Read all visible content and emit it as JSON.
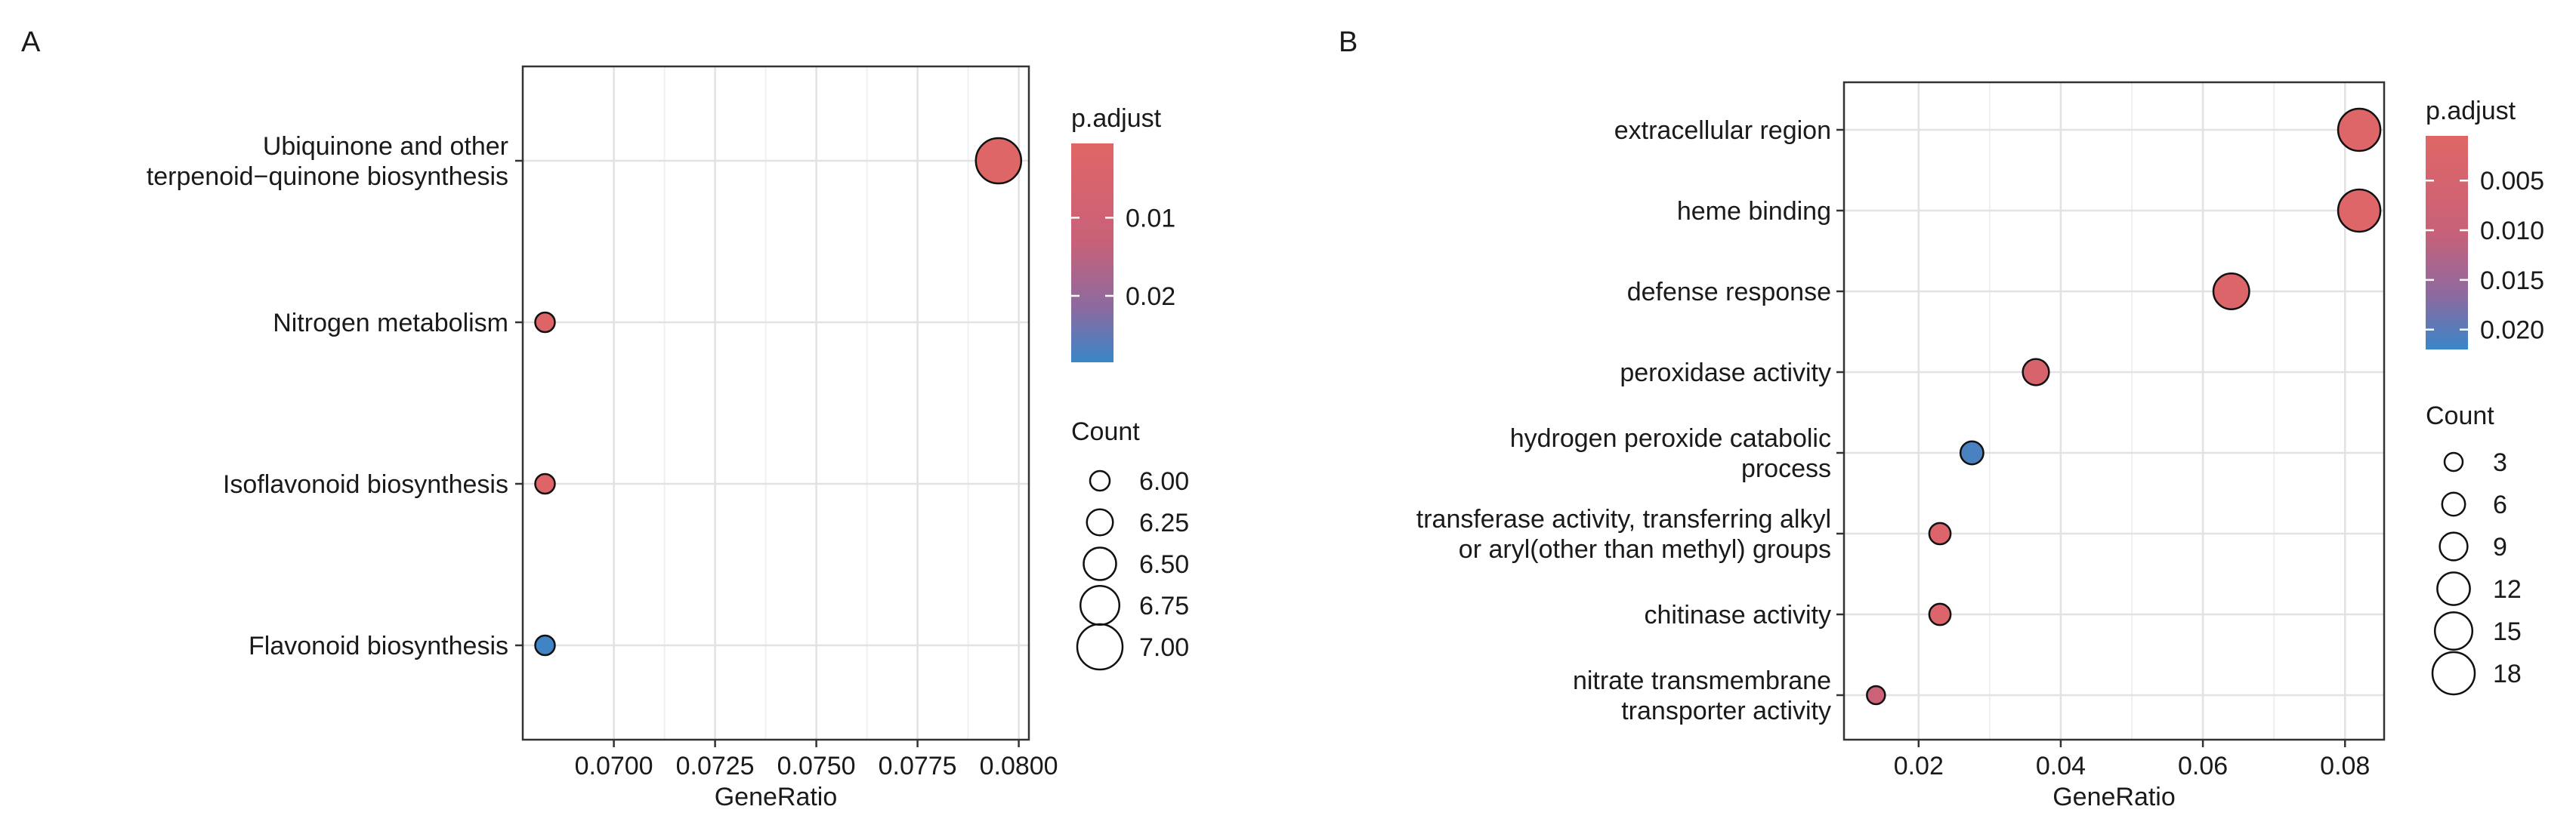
{
  "chart_data": [
    {
      "panel_label": "A",
      "type": "scatter",
      "xlabel": "GeneRatio",
      "xlim": [
        0.06775,
        0.08025
      ],
      "xticks": [
        0.07,
        0.0725,
        0.075,
        0.0775,
        0.08
      ],
      "xtick_labels": [
        "0.0700",
        "0.0725",
        "0.0750",
        "0.0775",
        "0.0800"
      ],
      "categories": [
        [
          "Ubiquinone and other",
          "terpenoid−quinone biosynthesis"
        ],
        [
          "Nitrogen metabolism"
        ],
        [
          "Isoflavonoid biosynthesis"
        ],
        [
          "Flavonoid biosynthesis"
        ]
      ],
      "points": [
        {
          "x": 0.0795,
          "count": 7,
          "p_adjust": 0.001
        },
        {
          "x": 0.0683,
          "count": 6,
          "p_adjust": 0.002
        },
        {
          "x": 0.0683,
          "count": 6,
          "p_adjust": 0.002
        },
        {
          "x": 0.0683,
          "count": 6,
          "p_adjust": 0.028
        }
      ],
      "color_legend": {
        "title": "p.adjust",
        "range": [
          0.0005,
          0.0285
        ],
        "ticks": [
          0.01,
          0.02
        ],
        "tick_labels": [
          "0.01",
          "0.02"
        ],
        "low_color": "#e06666",
        "high_color": "#3a86c8"
      },
      "size_legend": {
        "title": "Count",
        "domain": [
          6,
          7
        ],
        "values": [
          6,
          6.25,
          6.5,
          6.75,
          7
        ],
        "labels": [
          "6.00",
          "6.25",
          "6.50",
          "6.75",
          "7.00"
        ]
      }
    },
    {
      "panel_label": "B",
      "type": "scatter",
      "xlabel": "GeneRatio",
      "xlim": [
        0.0095,
        0.0855
      ],
      "xticks": [
        0.02,
        0.04,
        0.06,
        0.08
      ],
      "xtick_labels": [
        "0.02",
        "0.04",
        "0.06",
        "0.08"
      ],
      "categories": [
        [
          "extracellular region"
        ],
        [
          "heme binding"
        ],
        [
          "defense response"
        ],
        [
          "peroxidase activity"
        ],
        [
          "hydrogen peroxide catabolic",
          "process"
        ],
        [
          "transferase activity, transferring alkyl",
          "or aryl(other than methyl) groups"
        ],
        [
          "chitinase activity"
        ],
        [
          "nitrate transmembrane",
          "transporter activity"
        ]
      ],
      "points": [
        {
          "x": 0.082,
          "count": 18,
          "p_adjust": 0.0015
        },
        {
          "x": 0.082,
          "count": 18,
          "p_adjust": 0.0015
        },
        {
          "x": 0.064,
          "count": 14,
          "p_adjust": 0.002
        },
        {
          "x": 0.0365,
          "count": 8,
          "p_adjust": 0.004
        },
        {
          "x": 0.0275,
          "count": 6,
          "p_adjust": 0.021
        },
        {
          "x": 0.023,
          "count": 5,
          "p_adjust": 0.0025
        },
        {
          "x": 0.023,
          "count": 5,
          "p_adjust": 0.0025
        },
        {
          "x": 0.014,
          "count": 3,
          "p_adjust": 0.009
        }
      ],
      "color_legend": {
        "title": "p.adjust",
        "range": [
          0.0005,
          0.022
        ],
        "ticks": [
          0.005,
          0.01,
          0.015,
          0.02
        ],
        "tick_labels": [
          "0.005",
          "0.010",
          "0.015",
          "0.020"
        ],
        "low_color": "#e06666",
        "high_color": "#3a86c8"
      },
      "size_legend": {
        "title": "Count",
        "domain": [
          3,
          18
        ],
        "values": [
          3,
          6,
          9,
          12,
          15,
          18
        ],
        "labels": [
          "3",
          "6",
          "9",
          "12",
          "15",
          "18"
        ]
      }
    }
  ]
}
